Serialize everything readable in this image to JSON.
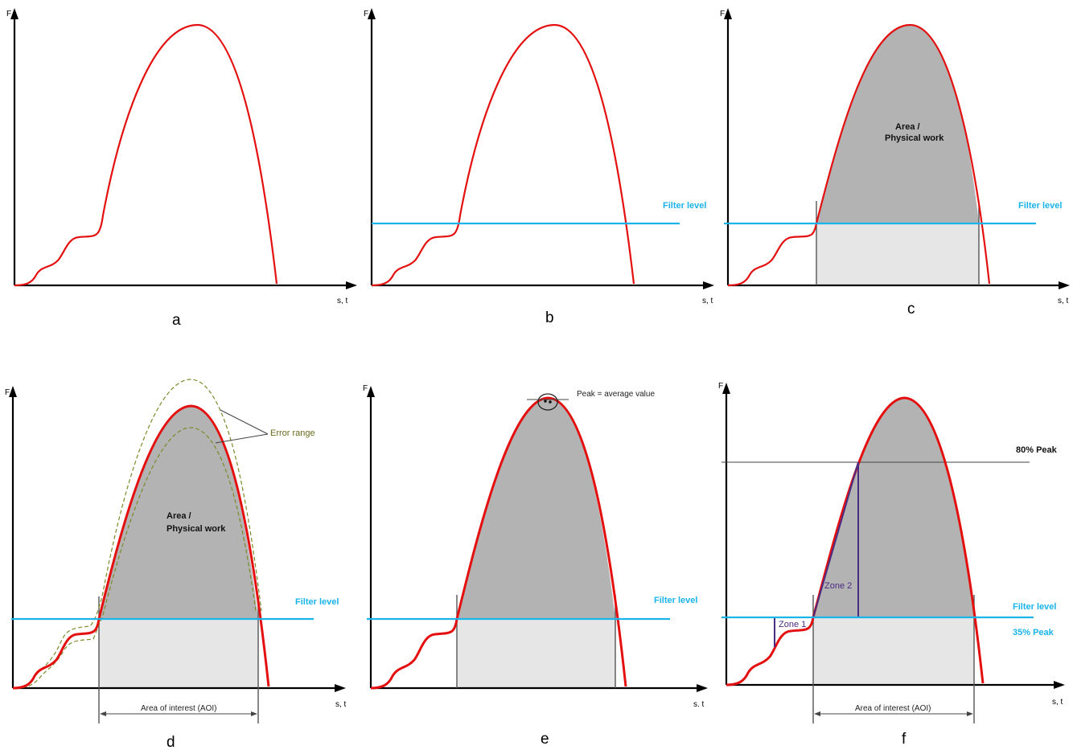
{
  "axes": {
    "y_label": "F",
    "x_label_top": "s, t",
    "x_label_bottom_left": "s, t",
    "x_label_bottom_mid": "s. t",
    "x_label_bottom_right": "s, t"
  },
  "panels": {
    "a": "a",
    "b": "b",
    "c": "c",
    "d": "d",
    "e": "e",
    "f": "f"
  },
  "labels": {
    "filter_level": "Filter level",
    "area_line1": "Area /",
    "area_line2": "Physical work",
    "error_range": "Error range",
    "aoi": "Area of interest (AOI)",
    "peak_avg": "Peak = average value",
    "peak80": "80% Peak",
    "peak35": "35% Peak",
    "zone1": "Zone 1",
    "zone2": "Zone 2"
  },
  "colors": {
    "curve": "#e41010",
    "filter": "#1ab4ea",
    "area_dark": "#b3b3b3",
    "area_light": "#e6e6e6",
    "error": "#7b8a2a",
    "zone": "#4b2c83"
  }
}
